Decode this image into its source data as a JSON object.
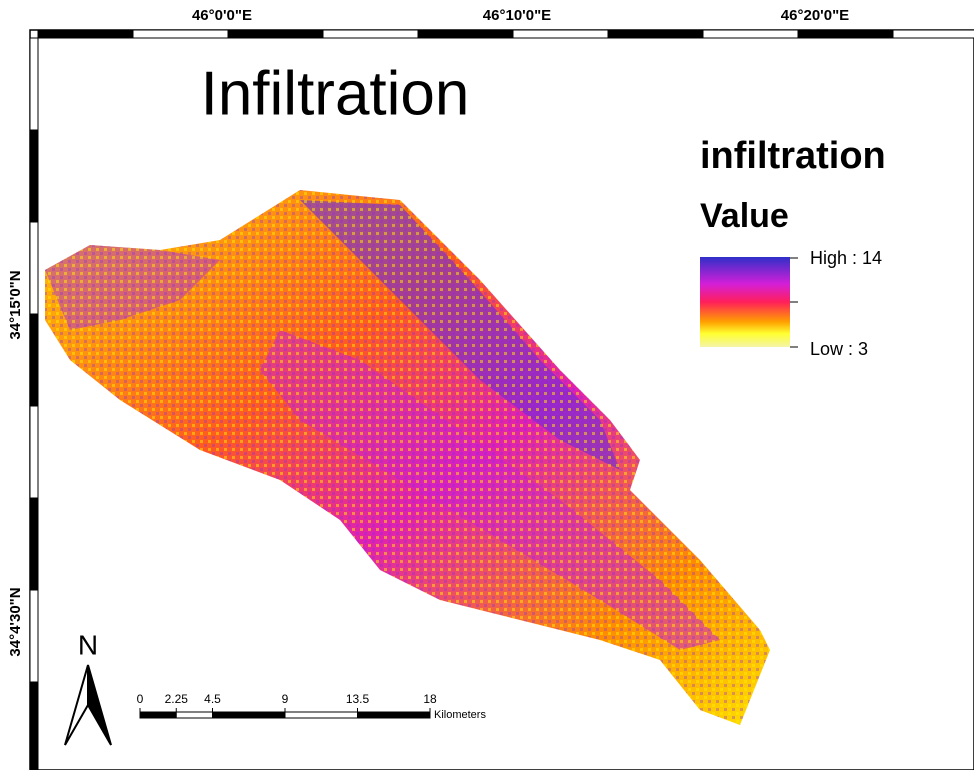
{
  "title": "Infiltration",
  "grid_labels": {
    "top": [
      "46°0'0\"E",
      "46°10'0\"E",
      "46°20'0\"E"
    ],
    "left": [
      "34°15'0\"N",
      "34°4'30\"N"
    ]
  },
  "legend": {
    "layer": "infiltration",
    "field": "Value",
    "high": "High : 14",
    "low": "Low : 3"
  },
  "north_arrow": "N",
  "scale_bar": {
    "ticks": [
      0,
      2.25,
      4.5,
      9,
      13.5,
      18
    ],
    "unit": "Kilometers"
  }
}
